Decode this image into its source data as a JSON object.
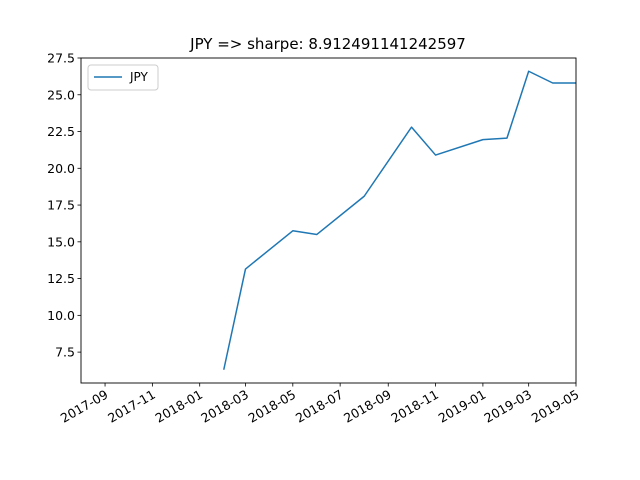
{
  "chart_data": {
    "type": "line",
    "title": "JPY => sharpe: 8.912491141242597",
    "xlabel": "",
    "ylabel": "",
    "x_axis_type": "date",
    "xlim": [
      "2017-08-01",
      "2019-05-01"
    ],
    "ylim": [
      5.4,
      27.5
    ],
    "x_ticks": [
      "2017-09",
      "2017-11",
      "2018-01",
      "2018-03",
      "2018-05",
      "2018-07",
      "2018-09",
      "2018-11",
      "2019-01",
      "2019-03",
      "2019-05"
    ],
    "y_ticks": [
      "7.5",
      "10.0",
      "12.5",
      "15.0",
      "17.5",
      "20.0",
      "22.5",
      "25.0",
      "27.5"
    ],
    "grid": false,
    "legend_position": "upper-left",
    "series": [
      {
        "name": "JPY",
        "color": "#1f77b4",
        "points": [
          {
            "x": "2018-02-01",
            "y": 6.3
          },
          {
            "x": "2018-03-01",
            "y": 13.15
          },
          {
            "x": "2018-05-01",
            "y": 15.75
          },
          {
            "x": "2018-06-01",
            "y": 15.5
          },
          {
            "x": "2018-08-01",
            "y": 18.1
          },
          {
            "x": "2018-10-01",
            "y": 22.8
          },
          {
            "x": "2018-11-01",
            "y": 20.9
          },
          {
            "x": "2019-01-01",
            "y": 21.95
          },
          {
            "x": "2019-02-01",
            "y": 22.05
          },
          {
            "x": "2019-03-01",
            "y": 26.6
          },
          {
            "x": "2019-04-01",
            "y": 25.8
          },
          {
            "x": "2019-05-01",
            "y": 25.8
          }
        ]
      }
    ]
  }
}
